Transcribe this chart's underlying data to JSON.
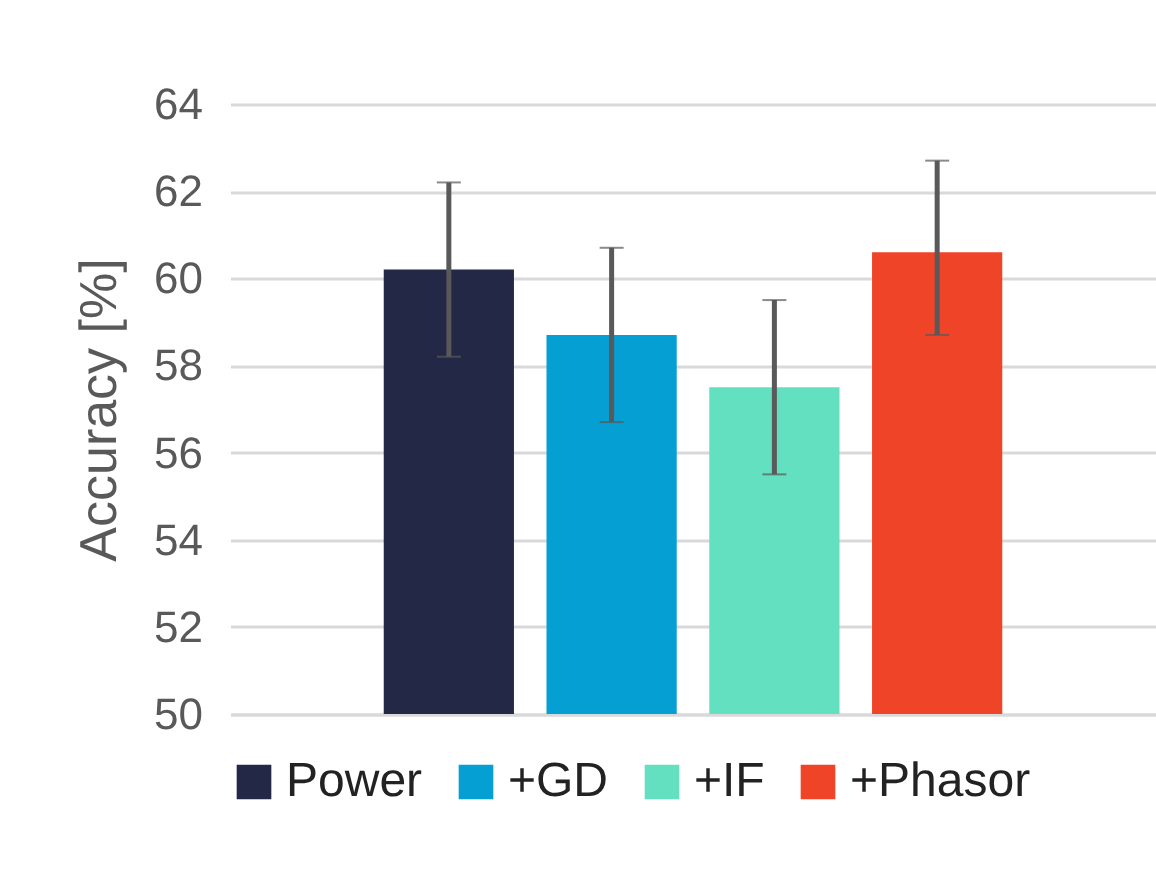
{
  "chart_data": {
    "type": "bar",
    "ylabel": "Accuracy [%]",
    "categories": [
      null
    ],
    "series": [
      {
        "name": "Power",
        "color": "#232846",
        "values": [
          60.2
        ],
        "errors": [
          2
        ]
      },
      {
        "name": "+GD",
        "color": "#069fd4",
        "values": [
          58.7
        ],
        "errors": [
          2
        ]
      },
      {
        "name": "+IF",
        "color": "#62e0c0",
        "values": [
          57.5
        ],
        "errors": [
          2
        ]
      },
      {
        "name": "+Phasor",
        "color": "#f04428",
        "values": [
          60.6
        ],
        "errors": [
          [
            58.7,
            62.7
          ]
        ]
      }
    ],
    "ylim": [
      50,
      64
    ],
    "yticks": [
      50,
      52,
      54,
      56,
      58,
      60,
      62,
      64
    ],
    "grid": "y",
    "legend": "bottom"
  }
}
